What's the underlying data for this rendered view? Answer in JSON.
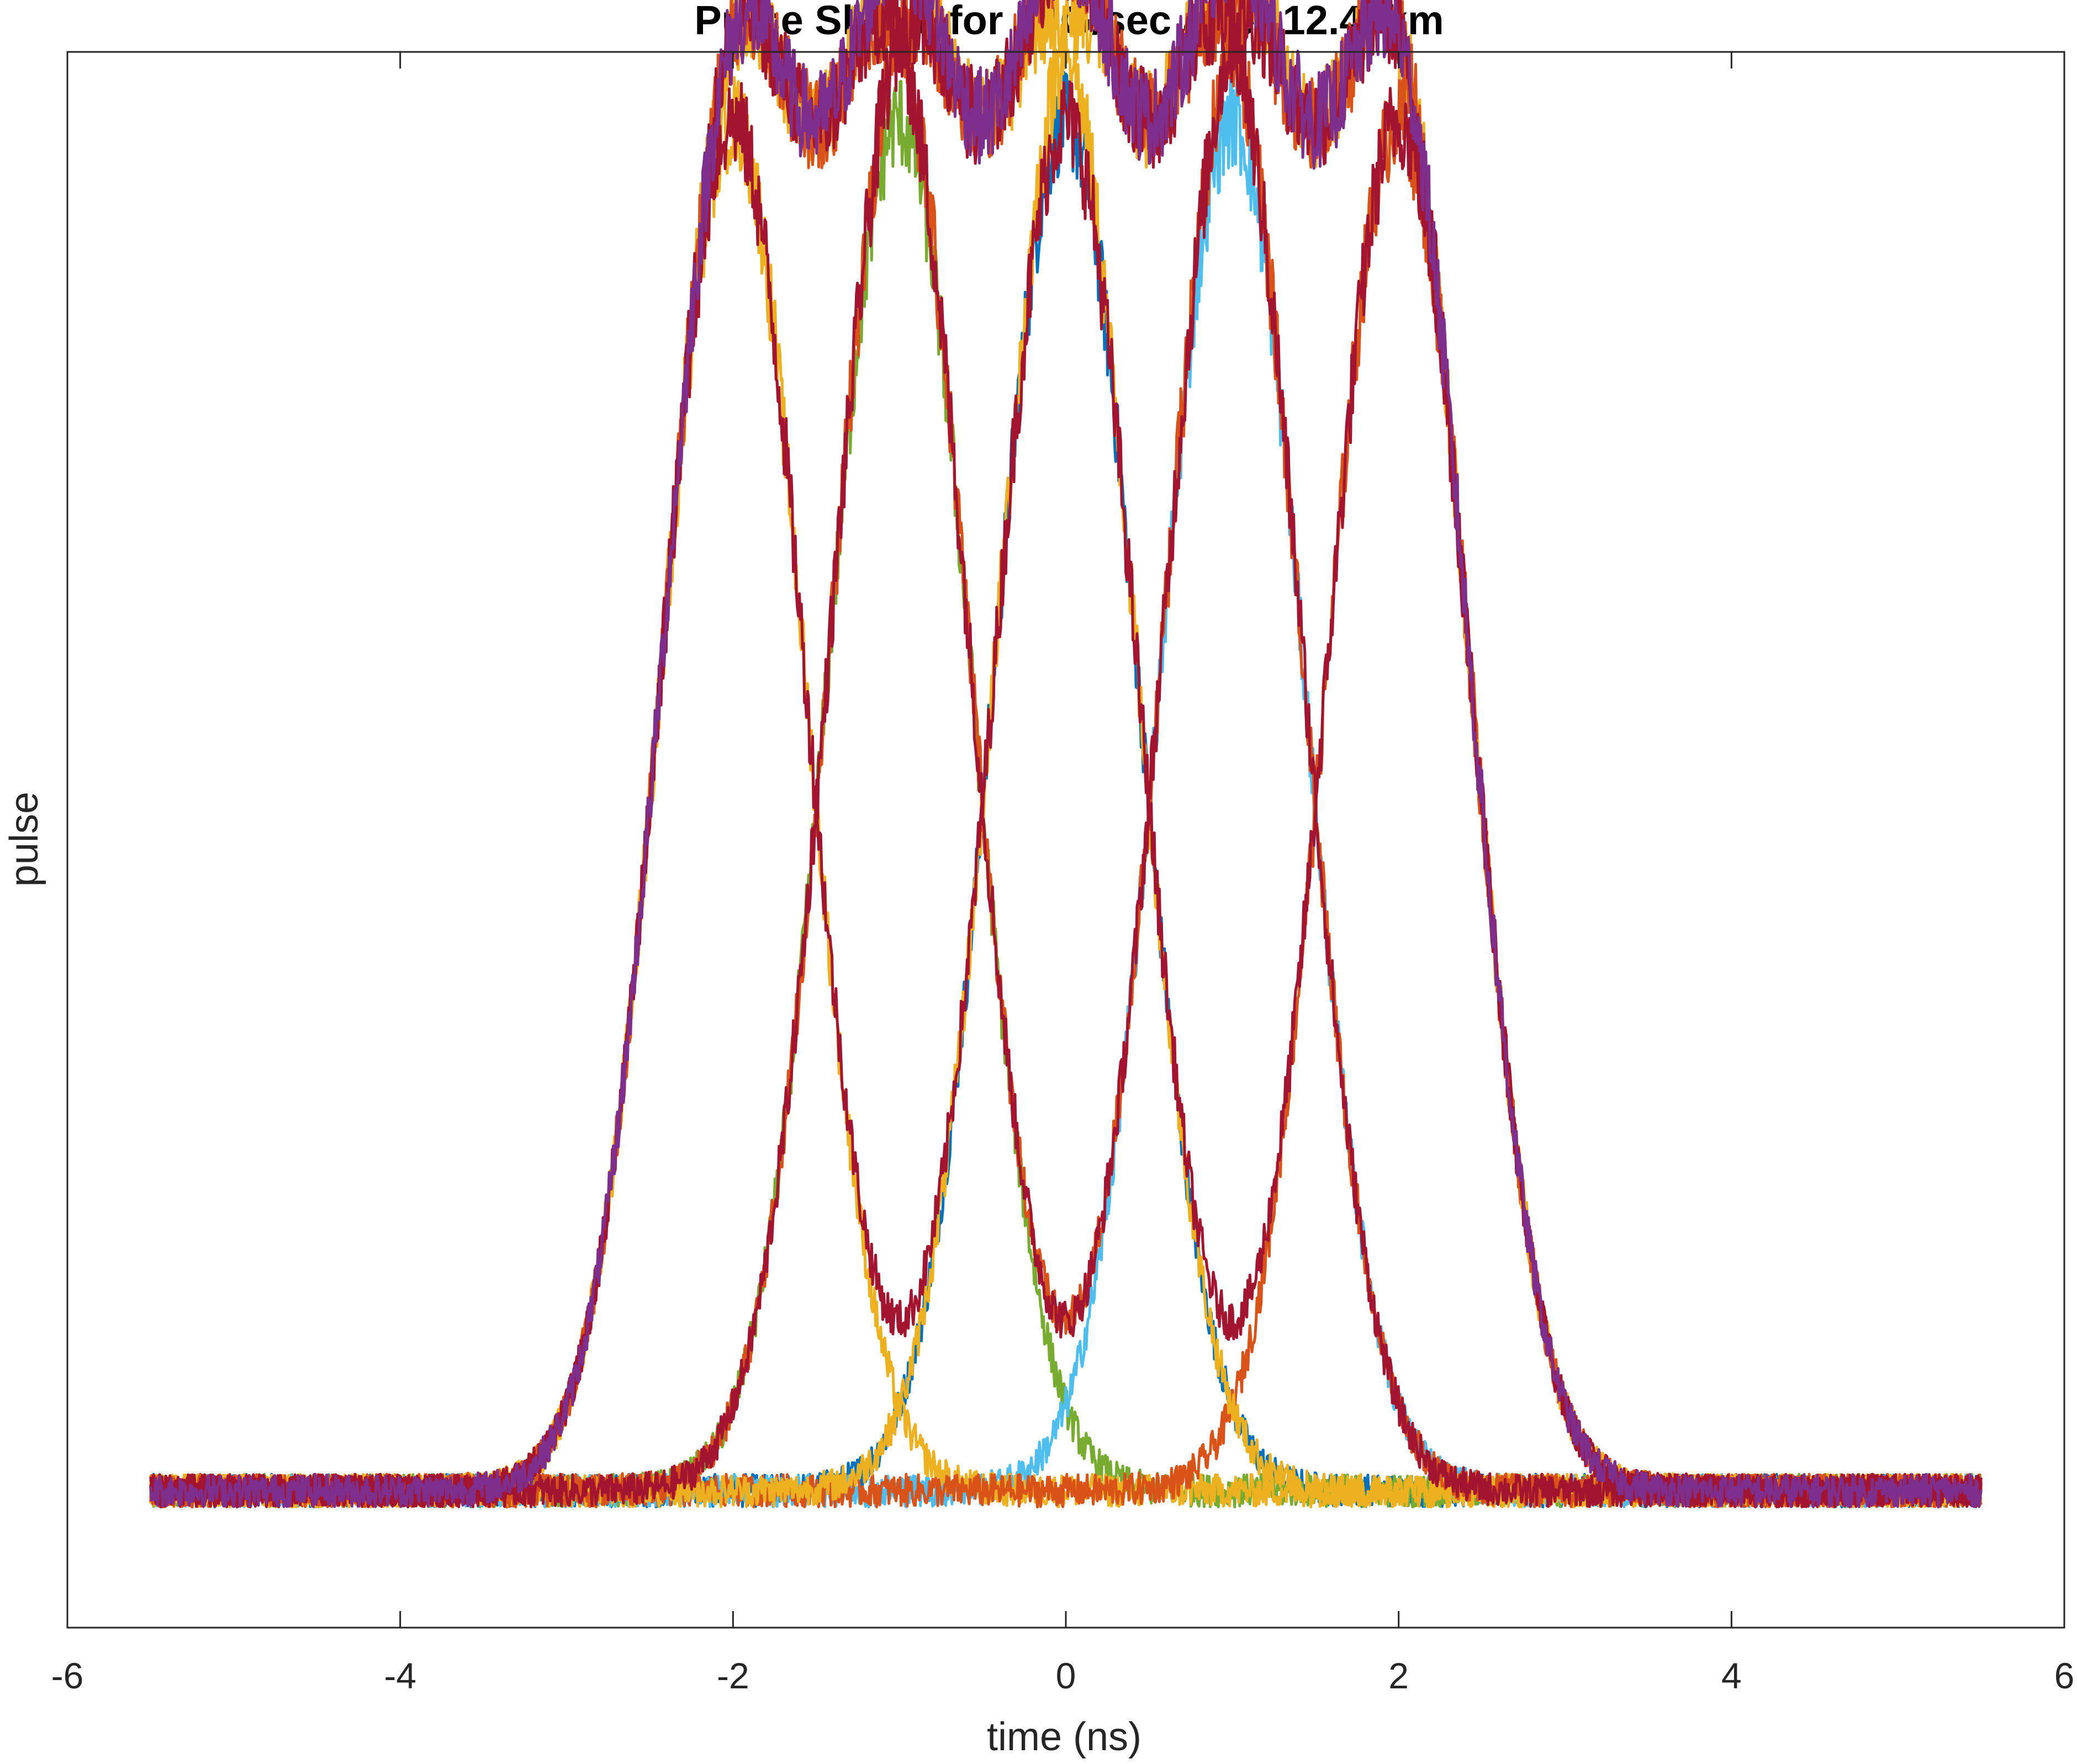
{
  "chart_data": {
    "type": "line",
    "title": "Pulse Shape for 10G/sec after 12.48km",
    "xlabel": "time (ns)",
    "ylabel": "pulse",
    "xlim": [
      -6,
      6
    ],
    "ylim": [
      -0.1,
      1.05
    ],
    "xticks": [
      "-6",
      "-4",
      "-2",
      "0",
      "2",
      "4",
      "6"
    ],
    "yticks": [],
    "grid": false,
    "legend": "none",
    "x_range": [
      -5.5,
      5.5
    ],
    "pulse_width_ns": 0.6,
    "noise_amplitude": 0.012,
    "colors": {
      "blue": "#0072BD",
      "orange": "#D95319",
      "yellow": "#EDB120",
      "purple": "#7E2F8E",
      "green": "#77AC30",
      "cyan": "#4DBEEE",
      "red": "#A2142F"
    },
    "series": [
      {
        "color": "blue",
        "centers": [
          0
        ]
      },
      {
        "color": "green",
        "centers": [
          -1
        ]
      },
      {
        "color": "cyan",
        "centers": [
          1
        ]
      },
      {
        "color": "yellow",
        "centers": [
          -2
        ]
      },
      {
        "color": "orange",
        "centers": [
          2
        ]
      },
      {
        "color": "yellow",
        "centers": [
          -2,
          -1,
          0
        ]
      },
      {
        "color": "yellow",
        "centers": [
          0,
          1,
          2
        ]
      },
      {
        "color": "orange",
        "centers": [
          -1,
          0,
          1
        ]
      },
      {
        "color": "orange",
        "centers": [
          -2,
          -1,
          1,
          2
        ]
      },
      {
        "color": "red",
        "centers": [
          -2,
          -1,
          1,
          2
        ]
      },
      {
        "color": "red",
        "centers": [
          -1,
          0,
          1
        ]
      },
      {
        "color": "red",
        "centers": [
          -2,
          0,
          2
        ]
      },
      {
        "color": "purple",
        "centers": [
          -2,
          -1,
          0,
          1,
          2
        ]
      }
    ]
  }
}
